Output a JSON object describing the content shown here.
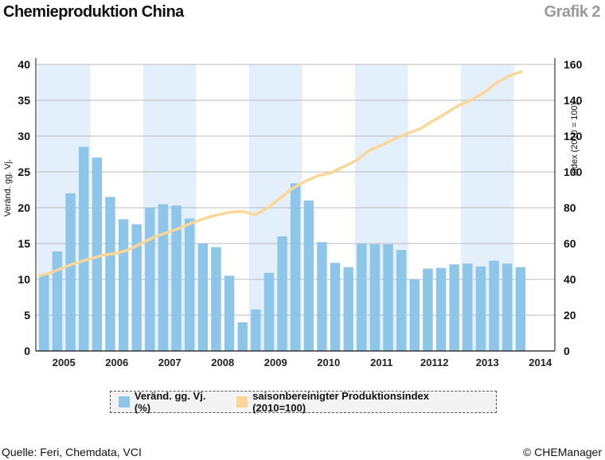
{
  "header": {
    "title": "Chemieproduktion China",
    "badge": "Grafik 2"
  },
  "footer": {
    "source": "Quelle: Feri, Chemdata, VCI",
    "copyright": "© CHEManager"
  },
  "colors": {
    "bars": "#8ec6ea",
    "line": "#fbd697",
    "band": "#e3f0fb",
    "axis": "#111111"
  },
  "chart_data": {
    "type": "bar+line",
    "ylabel_left": "Veränd. gg. Vj.",
    "ylabel_right": "Index (2010 = 100)",
    "ylim_left": [
      0,
      40
    ],
    "yticks_left": [
      "0",
      "5",
      "10",
      "15",
      "20",
      "25",
      "30",
      "35",
      "40"
    ],
    "ylim_right": [
      0,
      160
    ],
    "yticks_right": [
      "0",
      "20",
      "40",
      "60",
      "80",
      "100",
      "120",
      "140",
      "160"
    ],
    "xticks": [
      "2005",
      "2006",
      "2007",
      "2008",
      "2009",
      "2010",
      "2011",
      "20112",
      "2013",
      "2014"
    ],
    "shaded_years": [
      "2005",
      "2007",
      "2009",
      "2011",
      "2013"
    ],
    "grid": true,
    "legend": [
      {
        "name": "Veränd. gg. Vj. (%)",
        "swatch": "bars"
      },
      {
        "name": "saisonbereinigter Produktionsindex (2010=100)",
        "swatch": "line"
      }
    ],
    "legend_position": "bottom",
    "series": [
      {
        "name": "Veränd. gg. Vj. (%)",
        "type": "bar",
        "axis": "left",
        "values": [
          10.6,
          13.9,
          22.0,
          28.5,
          27.0,
          21.5,
          18.4,
          17.7,
          20.0,
          20.5,
          20.3,
          18.5,
          15.0,
          14.5,
          10.5,
          4.0,
          5.8,
          10.9,
          16.0,
          23.4,
          21.0,
          15.2,
          12.3,
          11.7,
          15.0,
          14.9,
          14.9,
          14.1,
          10.0,
          11.5,
          11.6,
          12.1,
          12.2,
          11.8,
          12.6,
          12.2,
          11.7
        ]
      },
      {
        "name": "saisonbereinigter Produktionsindex (2010=100)",
        "type": "line",
        "axis": "right",
        "values": [
          42,
          44,
          47,
          49.5,
          51.5,
          53.5,
          54.5,
          56.5,
          60,
          63.5,
          66,
          68.5,
          71.5,
          74,
          76,
          77.5,
          78,
          76,
          80,
          85.5,
          91,
          95,
          98,
          99.5,
          103,
          106.5,
          112,
          115,
          118.5,
          121.5,
          124,
          128.5,
          132.5,
          137,
          140,
          144,
          149.5,
          153.5,
          156
        ]
      }
    ]
  }
}
